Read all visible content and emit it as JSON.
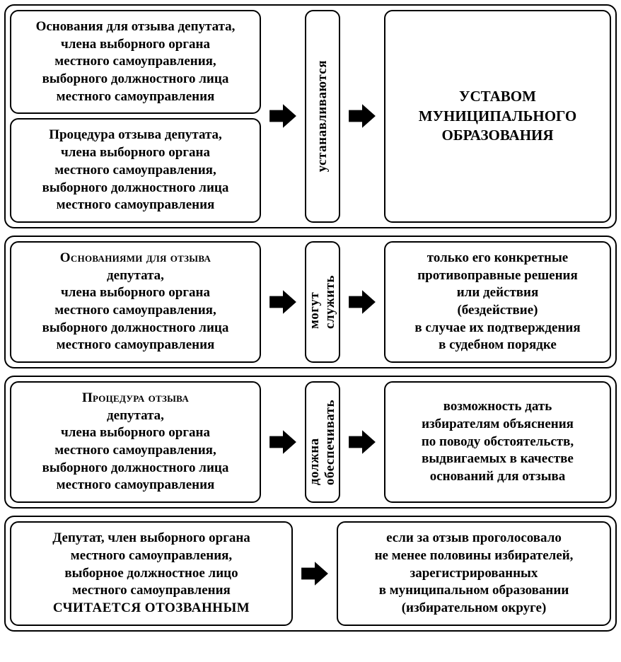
{
  "colors": {
    "line": "#000000",
    "bg": "#ffffff"
  },
  "arrow_count_section1": 2,
  "section1": {
    "left_top": "Основания для отзыва депутата,\nчлена выборного органа\nместного самоуправления,\nвыборного должностного лица\nместного самоуправления",
    "left_bot": "Процедура отзыва депутата,\nчлена выборного органа\nместного самоуправления,\nвыборного должностного лица\nместного самоуправления",
    "mid_vert": "устанавливаются",
    "right": "УСТАВОМ\nМУНИЦИПАЛЬНОГО\nОБРАЗОВАНИЯ"
  },
  "section2": {
    "left_head": "Основаниями для отзыва",
    "left_rest": "депутата,\nчлена выборного органа\nместного самоуправления,\nвыборного должностного лица\nместного самоуправления",
    "mid_vert": "могут\nслужить",
    "right": "только его конкретные\nпротивоправные решения\nили действия\n(бездействие)\nв случае их подтверждения\nв судебном порядке"
  },
  "section3": {
    "left_head": "Процедура отзыва",
    "left_rest": "депутата,\nчлена выборного органа\nместного самоуправления,\nвыборного должностного лица\nместного самоуправления",
    "mid_vert": "должна\nобеспечивать",
    "right": "возможность дать\nизбирателям объяснения\nпо поводу обстоятельств,\nвыдвигаемых в качестве\nоснований для отзыва"
  },
  "section4": {
    "left_top": "Депутат, член выборного органа\nместного самоуправления,\nвыборное должностное лицо\nместного самоуправления",
    "left_emph": "СЧИТАЕТСЯ ОТОЗВАННЫМ",
    "right": "если за отзыв проголосовало\nне менее половины избирателей,\nзарегистрированных\nв муниципальном образовании\n(избирательном округе)"
  }
}
